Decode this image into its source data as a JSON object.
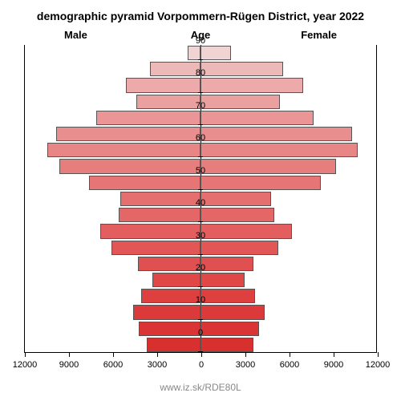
{
  "title": "demographic pyramid Vorpommern-Rügen District, year 2022",
  "title_fontsize": 14,
  "labels": {
    "male": "Male",
    "female": "Female",
    "age": "Age"
  },
  "label_fontsize": 13,
  "axis_fontsize": 11,
  "attribution": "www.iz.sk/RDE80L",
  "attribution_color": "#888888",
  "x_axis": {
    "max": 12000,
    "ticks_left": [
      12000,
      9000,
      6000,
      3000,
      0
    ],
    "ticks_right": [
      3000,
      6000,
      9000,
      12000
    ]
  },
  "y_axis": {
    "ticks": [
      0,
      10,
      20,
      30,
      40,
      50,
      60,
      70,
      80,
      90
    ]
  },
  "bars": [
    {
      "age": 0,
      "male": 3650,
      "female": 3600,
      "color": "#d82f2f"
    },
    {
      "age": 5,
      "male": 4200,
      "female": 4000,
      "color": "#da3434"
    },
    {
      "age": 10,
      "male": 4600,
      "female": 4350,
      "color": "#dc3a3a"
    },
    {
      "age": 15,
      "male": 4050,
      "female": 3700,
      "color": "#de4040"
    },
    {
      "age": 20,
      "male": 3300,
      "female": 3000,
      "color": "#e04848"
    },
    {
      "age": 25,
      "male": 4250,
      "female": 3600,
      "color": "#e15050"
    },
    {
      "age": 30,
      "male": 6050,
      "female": 5300,
      "color": "#e25656"
    },
    {
      "age": 35,
      "male": 6800,
      "female": 6200,
      "color": "#e35e5e"
    },
    {
      "age": 40,
      "male": 5550,
      "female": 5000,
      "color": "#e46666"
    },
    {
      "age": 45,
      "male": 5450,
      "female": 4800,
      "color": "#e56e6e"
    },
    {
      "age": 50,
      "male": 7600,
      "female": 8200,
      "color": "#e67676"
    },
    {
      "age": 55,
      "male": 9600,
      "female": 9200,
      "color": "#e77e7e"
    },
    {
      "age": 60,
      "male": 10400,
      "female": 10700,
      "color": "#e88686"
    },
    {
      "age": 65,
      "male": 9800,
      "female": 10300,
      "color": "#e98e8e"
    },
    {
      "age": 70,
      "male": 7100,
      "female": 7700,
      "color": "#ea9696"
    },
    {
      "age": 75,
      "male": 4350,
      "female": 5400,
      "color": "#eba0a0"
    },
    {
      "age": 80,
      "male": 5100,
      "female": 7000,
      "color": "#ecaaaa"
    },
    {
      "age": 85,
      "male": 3450,
      "female": 5600,
      "color": "#edb8b8"
    },
    {
      "age": 90,
      "male": 850,
      "female": 2050,
      "color": "#f0d4d4"
    }
  ],
  "bar_gap": 2,
  "bar_border_color": "#555555",
  "axis_color": "#000000",
  "background": "#ffffff"
}
